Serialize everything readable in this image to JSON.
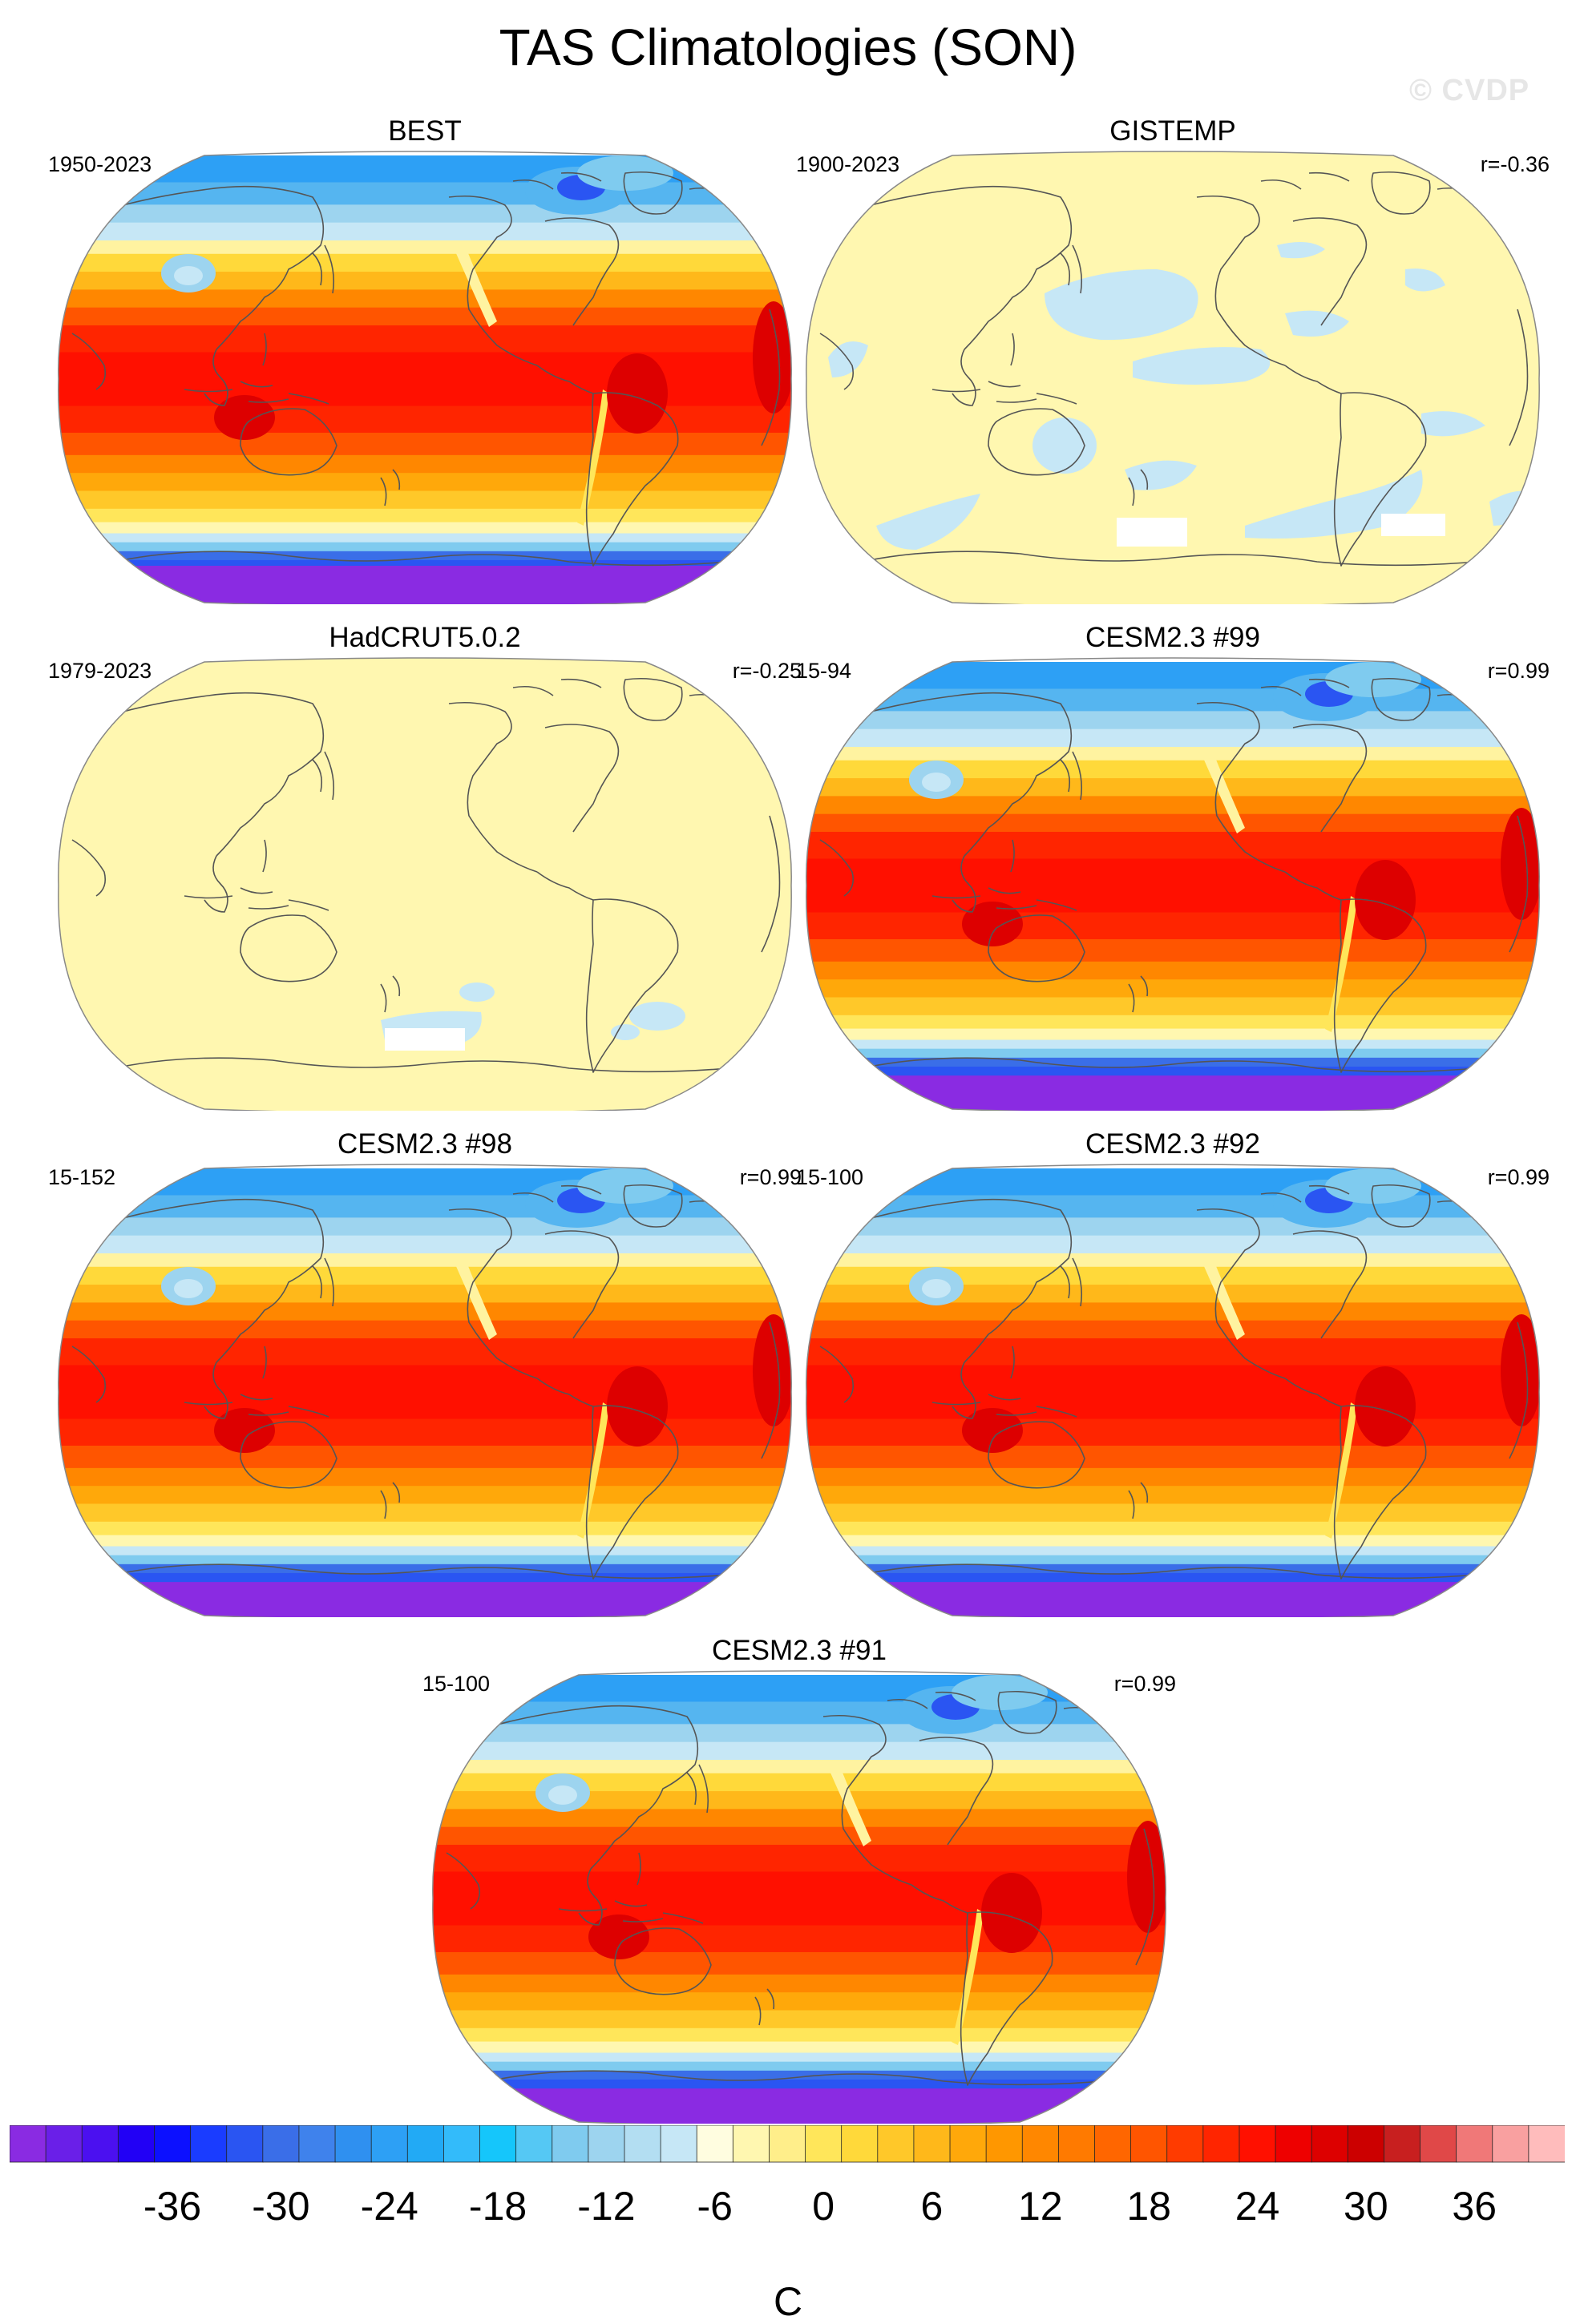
{
  "figure": {
    "title": "TAS Climatologies (SON)",
    "watermark": "© CVDP"
  },
  "panels": [
    {
      "name": "BEST",
      "left": "1950-2023",
      "right": "",
      "kind": "obs_full"
    },
    {
      "name": "GISTEMP",
      "left": "1900-2023",
      "right": "r=-0.36",
      "kind": "anom_gis"
    },
    {
      "name": "HadCRUT5.0.2",
      "left": "1979-2023",
      "right": "r=-0.25",
      "kind": "anom_had"
    },
    {
      "name": "CESM2.3 #99",
      "left": "15-94",
      "right": "r=0.99",
      "kind": "model"
    },
    {
      "name": "CESM2.3 #98",
      "left": "15-152",
      "right": "r=0.99",
      "kind": "model"
    },
    {
      "name": "CESM2.3 #92",
      "left": "15-100",
      "right": "r=0.99",
      "kind": "model"
    },
    {
      "name": "CESM2.3 #91",
      "left": "15-100",
      "right": "r=0.99",
      "kind": "model"
    }
  ],
  "colorbar": {
    "unit": "C",
    "tick_labels": [
      "-36",
      "-30",
      "-24",
      "-18",
      "-12",
      "-6",
      "0",
      "6",
      "12",
      "18",
      "24",
      "30",
      "36"
    ],
    "tick_values": [
      -36,
      -30,
      -24,
      -18,
      -12,
      -6,
      0,
      6,
      12,
      18,
      24,
      30,
      36
    ],
    "min": -42,
    "max": 42,
    "step": 2,
    "colors": [
      "#8a2be2",
      "#6a1fe8",
      "#4b10f0",
      "#2200f5",
      "#0c10ff",
      "#1a3cff",
      "#2a55f2",
      "#3a6ee8",
      "#3f82ec",
      "#2f90f0",
      "#2da0f5",
      "#22aaf5",
      "#33bbfa",
      "#15c6fb",
      "#55c8f4",
      "#7fcbef",
      "#9dd4ef",
      "#b3def2",
      "#c6e7f6",
      "#fffde0",
      "#fff7b0",
      "#ffee8a",
      "#ffe65a",
      "#ffd93a",
      "#ffc829",
      "#ffb81a",
      "#ffa80a",
      "#ff9700",
      "#ff8700",
      "#ff7a00",
      "#ff6600",
      "#ff5500",
      "#ff3b00",
      "#ff2500",
      "#ff1000",
      "#ee0000",
      "#dd0000",
      "#cc0000",
      "#c81f1f",
      "#e04848",
      "#f07878",
      "#f9a0a0",
      "#ffbcbc"
    ]
  }
}
